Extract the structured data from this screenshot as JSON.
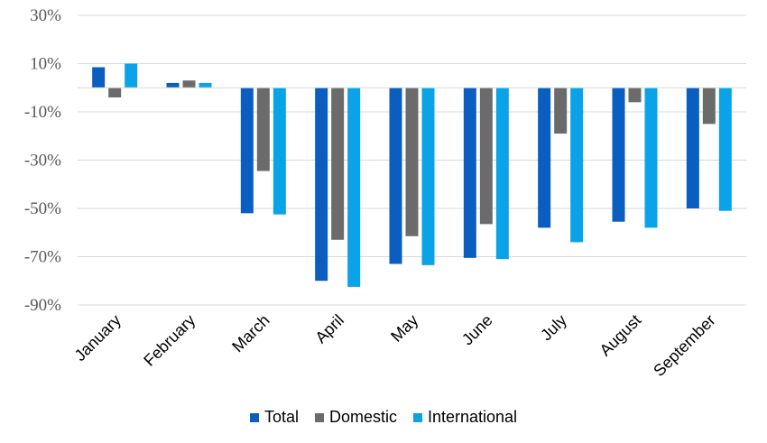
{
  "chart_data": {
    "type": "bar",
    "categories": [
      "January",
      "February",
      "March",
      "April",
      "May",
      "June",
      "July",
      "August",
      "September"
    ],
    "series": [
      {
        "name": "Total",
        "color": "#0a5ebf",
        "values": [
          8.5,
          2,
          -52,
          -80,
          -73,
          -70.5,
          -58,
          -55.5,
          -50
        ]
      },
      {
        "name": "Domestic",
        "color": "#6b6b6b",
        "values": [
          -4,
          3,
          -34.5,
          -63,
          -61.5,
          -56.5,
          -19,
          -6,
          -15
        ]
      },
      {
        "name": "International",
        "color": "#0aa3e8",
        "values": [
          10,
          2,
          -52.5,
          -82.5,
          -73.5,
          -71,
          -64,
          -58,
          -51
        ]
      }
    ],
    "yticks": [
      "30%",
      "10%",
      "-10%",
      "-30%",
      "-50%",
      "-70%",
      "-90%"
    ],
    "ylim": [
      -90,
      30
    ],
    "grid": true,
    "legend_position": "bottom",
    "title": "",
    "xlabel": "",
    "ylabel": ""
  }
}
